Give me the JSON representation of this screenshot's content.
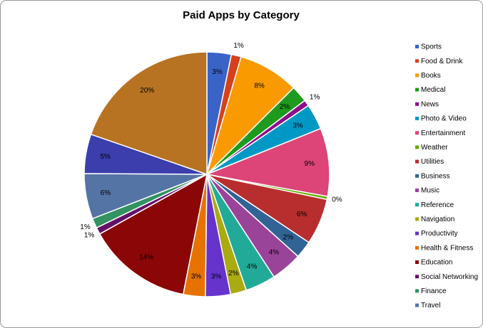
{
  "chart_data": {
    "type": "pie",
    "title": "Paid Apps by Category",
    "categories": [
      "Sports",
      "Food & Drink",
      "Books",
      "Medical",
      "News",
      "Photo & Video",
      "Entertainment",
      "Weather",
      "Utilities",
      "Business",
      "Music",
      "Reference",
      "Navigation",
      "Productivity",
      "Health & Fitness",
      "Education",
      "Social Networking",
      "Finance",
      "Travel",
      null,
      null
    ],
    "values": [
      3.2,
      1.3,
      8.0,
      2.2,
      0.8,
      3.4,
      9.0,
      0.4,
      6.1,
      2.3,
      4.1,
      4.0,
      2.1,
      3.3,
      2.9,
      13.8,
      0.9,
      1.3,
      6.0,
      5.2,
      19.7
    ],
    "value_labels": [
      "3%",
      "1%",
      "8%",
      "2%",
      "1%",
      "3%",
      "9%",
      "0%",
      "6%",
      "2%",
      "4%",
      "4%",
      "2%",
      "3%",
      "3%",
      "14%",
      "1%",
      "1%",
      "6%",
      "5%",
      "20%"
    ],
    "colors": [
      "#3a63c8",
      "#d8401c",
      "#f99b00",
      "#1e9a1e",
      "#8e0d8e",
      "#0099c6",
      "#dd4477",
      "#66aa00",
      "#b82e2e",
      "#316395",
      "#994499",
      "#22aa99",
      "#aaaa11",
      "#6633cc",
      "#e67300",
      "#8b0707",
      "#651067",
      "#329262",
      "#5574a6",
      "#3b3eac",
      "#b77322"
    ],
    "legend": "right"
  }
}
